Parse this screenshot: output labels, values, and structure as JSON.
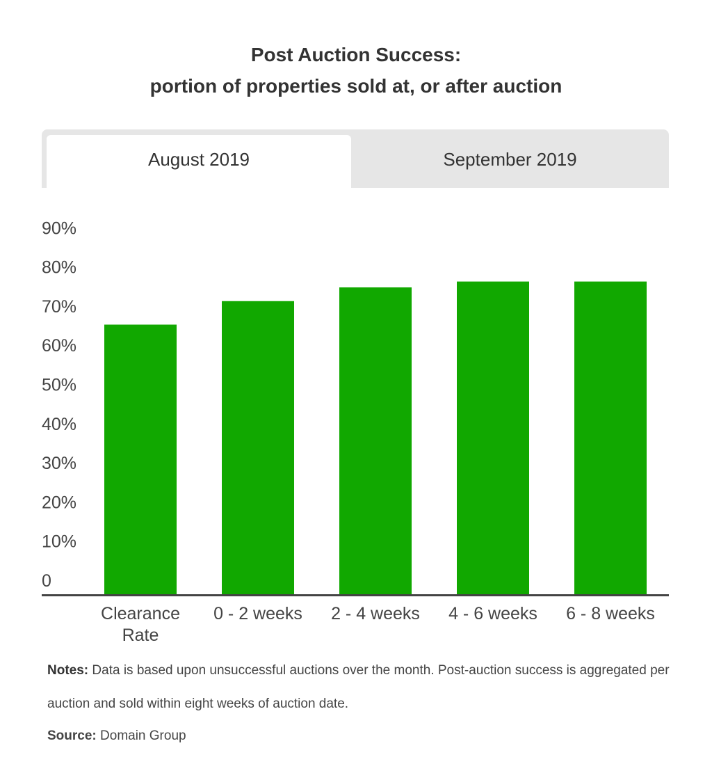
{
  "title_line1": "Post Auction Success:",
  "title_line2": "portion of properties sold at, or after auction",
  "tabs": [
    {
      "label": "August 2019",
      "active": true
    },
    {
      "label": "September 2019",
      "active": false
    }
  ],
  "chart_data": {
    "type": "bar",
    "categories": [
      [
        "Clearance",
        "Rate"
      ],
      [
        "0 - 2 weeks"
      ],
      [
        "2 - 4 weeks"
      ],
      [
        "4 - 6 weeks"
      ],
      [
        "6 - 8 weeks"
      ]
    ],
    "values": [
      69,
      75,
      78.5,
      80,
      80
    ],
    "y_ticks": [
      "0",
      "10%",
      "20%",
      "30%",
      "40%",
      "50%",
      "60%",
      "70%",
      "80%",
      "90%"
    ],
    "ylim": [
      0,
      90
    ],
    "bar_color": "#11a800",
    "axis_color": "#444444",
    "grid": false,
    "legend": "none"
  },
  "notes": {
    "label": "Notes:",
    "text": " Data is based upon unsuccessful auctions over the month. Post-auction success is aggregated per auction and sold within eight weeks of auction date."
  },
  "source": {
    "label": "Source:",
    "text": " Domain Group"
  }
}
